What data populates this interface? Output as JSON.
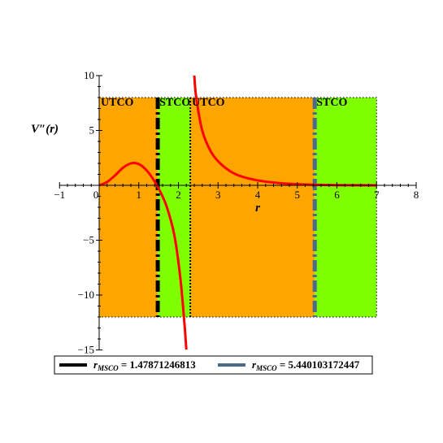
{
  "chart_data": {
    "type": "line",
    "title": "",
    "xlabel": "r",
    "ylabel": "V″(r)",
    "xlim": [
      -1,
      8
    ],
    "ylim": [
      -15,
      10
    ],
    "x_ticks": [
      -1,
      0,
      1,
      2,
      3,
      4,
      5,
      6,
      7,
      8
    ],
    "y_ticks": [
      -15,
      -10,
      -5,
      5,
      10
    ],
    "x_tick_labels": [
      "−1",
      "0",
      "1",
      "2",
      "3",
      "4",
      "5",
      "6",
      "7",
      "8"
    ],
    "y_tick_labels": [
      "−15",
      "−10",
      "−5",
      "5",
      "10"
    ],
    "grid": false,
    "regions": [
      {
        "label": "UTCO",
        "x_start": 0,
        "x_end": 1.47871246813,
        "color": "#ffa500"
      },
      {
        "label": "STCO",
        "x_start": 1.47871246813,
        "x_end": 2.3,
        "color": "#7fff00"
      },
      {
        "label": "UTCO",
        "x_start": 2.3,
        "x_end": 5.440103172447,
        "color": "#ffa500"
      },
      {
        "label": "STCO",
        "x_start": 5.440103172447,
        "x_end": 7,
        "color": "#7fff00"
      }
    ],
    "region_y_range": [
      -12,
      8
    ],
    "asymptote_x": 2.3,
    "curve": {
      "color": "#ff0000",
      "x": [
        0,
        0.2,
        0.4,
        0.6,
        0.8,
        0.95,
        1.1,
        1.3,
        1.5,
        1.7,
        1.9,
        2.05,
        2.15,
        2.2,
        2.4,
        2.45,
        2.6,
        2.8,
        3.0,
        3.3,
        3.6,
        4.0,
        4.5,
        5.0,
        5.5,
        6.0,
        6.5,
        7.0
      ],
      "y": [
        0,
        0.3,
        0.9,
        1.6,
        2.0,
        2.0,
        1.7,
        0.9,
        -0.3,
        -1.9,
        -4.6,
        -8.5,
        -12.5,
        -15,
        10,
        8.0,
        5.0,
        3.2,
        2.2,
        1.3,
        0.8,
        0.45,
        0.22,
        0.1,
        0.05,
        0.02,
        0.01,
        0.0
      ]
    },
    "series": [
      {
        "name": "r_MSCO = 1.47871246813",
        "x": 1.47871246813,
        "color": "#000000",
        "style": "dash-dot"
      },
      {
        "name": "r_MSCO = 5.440103172447",
        "x": 5.440103172447,
        "color": "#4a6a8a",
        "style": "dash-dot"
      }
    ],
    "legend": {
      "position": "bottom",
      "entries": [
        {
          "sub": "MSCO",
          "value": "1.47871246813",
          "color": "#000000"
        },
        {
          "sub": "MSCO",
          "value": "5.440103172447",
          "color": "#4a6a8a"
        }
      ]
    }
  }
}
